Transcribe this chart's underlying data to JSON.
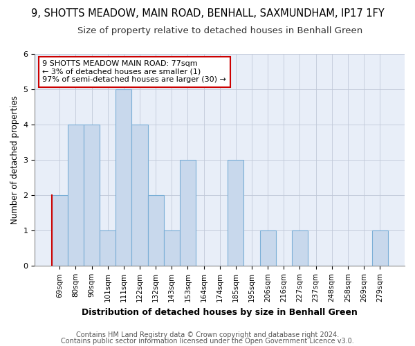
{
  "title": "9, SHOTTS MEADOW, MAIN ROAD, BENHALL, SAXMUNDHAM, IP17 1FY",
  "subtitle": "Size of property relative to detached houses in Benhall Green",
  "xlabel": "Distribution of detached houses by size in Benhall Green",
  "ylabel": "Number of detached properties",
  "categories": [
    "69sqm",
    "80sqm",
    "90sqm",
    "101sqm",
    "111sqm",
    "122sqm",
    "132sqm",
    "143sqm",
    "153sqm",
    "164sqm",
    "174sqm",
    "185sqm",
    "195sqm",
    "206sqm",
    "216sqm",
    "227sqm",
    "237sqm",
    "248sqm",
    "258sqm",
    "269sqm",
    "279sqm"
  ],
  "values": [
    2,
    4,
    4,
    1,
    5,
    4,
    2,
    1,
    3,
    0,
    0,
    3,
    0,
    1,
    0,
    1,
    0,
    0,
    0,
    0,
    1
  ],
  "bar_color": "#c8d8ec",
  "bar_edge_color": "#7aaed6",
  "highlight_bar_index": 0,
  "highlight_edge_color": "#cc0000",
  "annotation_text": "9 SHOTTS MEADOW MAIN ROAD: 77sqm\n← 3% of detached houses are smaller (1)\n97% of semi-detached houses are larger (30) →",
  "annotation_box_color": "#ffffff",
  "annotation_box_edge": "#cc0000",
  "footer_line1": "Contains HM Land Registry data © Crown copyright and database right 2024.",
  "footer_line2": "Contains public sector information licensed under the Open Government Licence v3.0.",
  "fig_bg_color": "#ffffff",
  "plot_bg_color": "#e8eef8",
  "ylim": [
    0,
    6
  ],
  "yticks": [
    0,
    1,
    2,
    3,
    4,
    5,
    6
  ],
  "title_fontsize": 10.5,
  "subtitle_fontsize": 9.5,
  "xlabel_fontsize": 9,
  "ylabel_fontsize": 8.5,
  "tick_fontsize": 7.5,
  "annotation_fontsize": 8,
  "footer_fontsize": 7
}
